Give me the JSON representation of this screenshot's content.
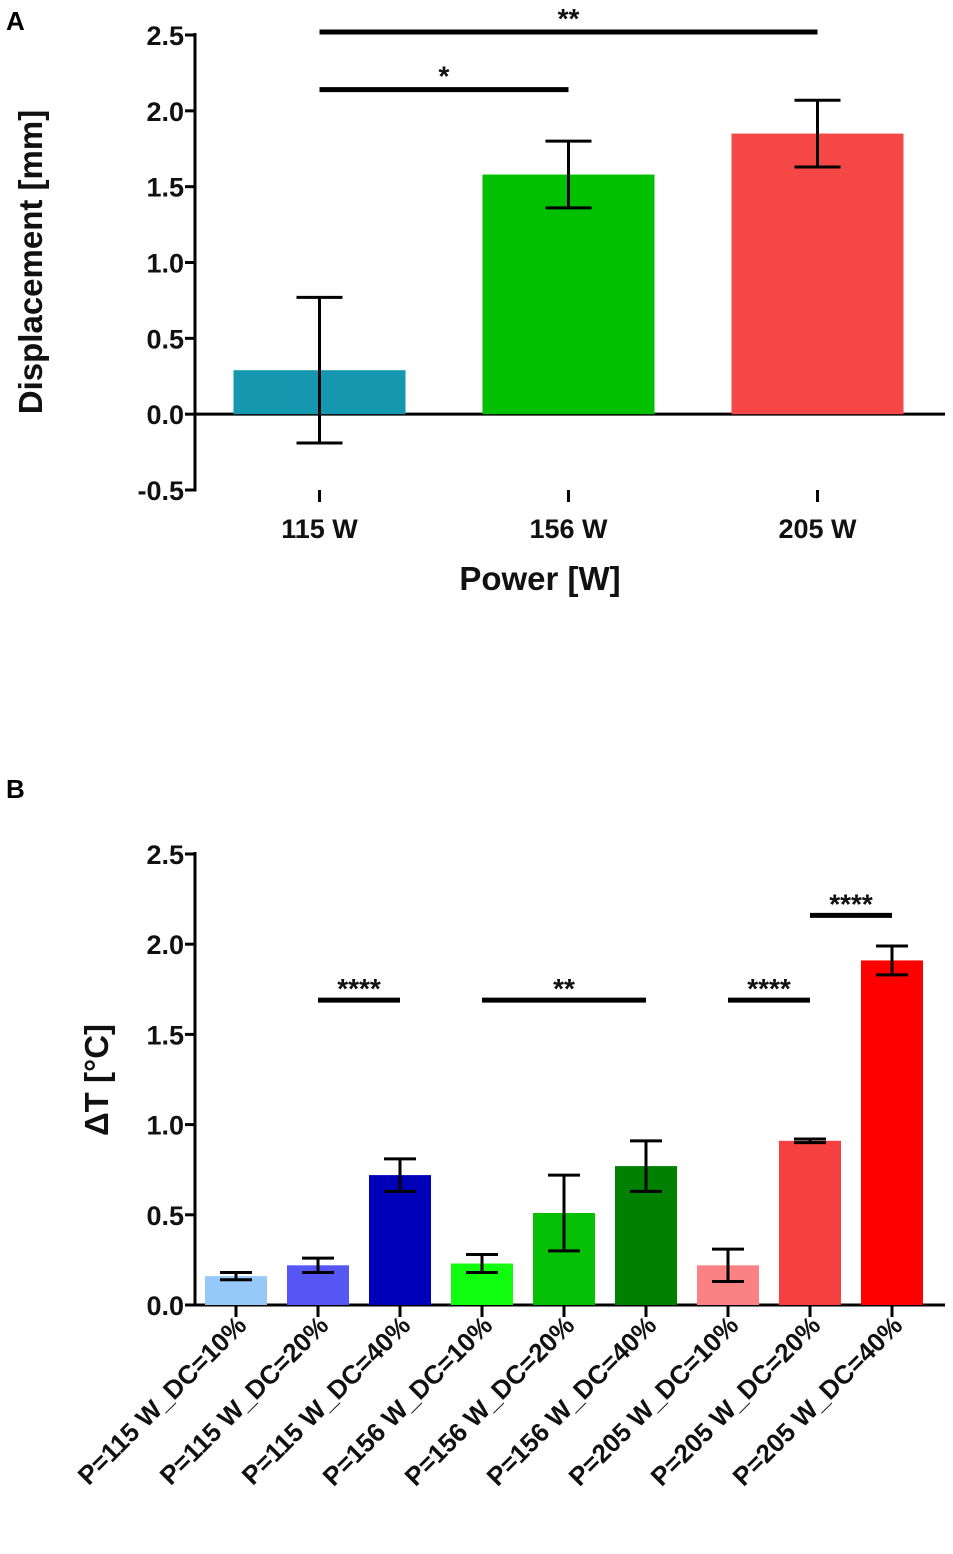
{
  "chart_data": [
    {
      "panel": "A",
      "type": "bar",
      "title": "",
      "xlabel": "Power [W]",
      "ylabel": "Displacement [mm]",
      "ylim": [
        -0.5,
        2.5
      ],
      "yticks": [
        "-0.5",
        "0.0",
        "0.5",
        "1.0",
        "1.5",
        "2.0",
        "2.5"
      ],
      "categories": [
        "115 W",
        "156 W",
        "205 W"
      ],
      "values": [
        0.29,
        1.58,
        1.85
      ],
      "error": [
        0.48,
        0.22,
        0.22
      ],
      "colors": [
        "#1597b0",
        "#00c000",
        "#f64747"
      ],
      "significance": [
        {
          "from": 0,
          "to": 1,
          "y": 2.14,
          "label": "*"
        },
        {
          "from": 0,
          "to": 2,
          "y": 2.52,
          "label": "**"
        }
      ]
    },
    {
      "panel": "B",
      "type": "bar",
      "title": "",
      "xlabel": "",
      "ylabel": "ΔT [°C]",
      "ylim": [
        0,
        2.5
      ],
      "yticks": [
        "0.0",
        "0.5",
        "1.0",
        "1.5",
        "2.0",
        "2.5"
      ],
      "categories": [
        "P=115 W_DC=10%",
        "P=115 W_DC=20%",
        "P=115 W_DC=40%",
        "P=156 W_DC=10%",
        "P=156 W_DC=20%",
        "P=156 W_DC=40%",
        "P=205 W_DC=10%",
        "P=205 W_DC=20%",
        "P=205 W_DC=40%"
      ],
      "values": [
        0.16,
        0.22,
        0.72,
        0.23,
        0.51,
        0.77,
        0.22,
        0.91,
        1.91
      ],
      "error": [
        0.02,
        0.04,
        0.09,
        0.05,
        0.21,
        0.14,
        0.09,
        0.01,
        0.08
      ],
      "colors": [
        "#96c8f8",
        "#5656f4",
        "#0000b8",
        "#10fd10",
        "#06c006",
        "#008000",
        "#fa8282",
        "#f64040",
        "#ff0000"
      ],
      "significance": [
        {
          "from": 1,
          "to": 2,
          "y": 1.69,
          "label": "****"
        },
        {
          "from": 3,
          "to": 5,
          "y": 1.69,
          "label": "**"
        },
        {
          "from": 6,
          "to": 7,
          "y": 1.69,
          "label": "****"
        },
        {
          "from": 7,
          "to": 8,
          "y": 2.16,
          "label": "****"
        }
      ]
    }
  ]
}
